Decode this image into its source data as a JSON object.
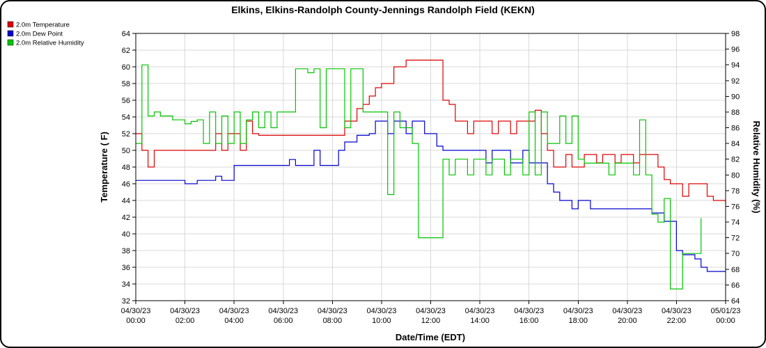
{
  "title": "Elkins, Elkins-Randolph County-Jennings Randolph Field (KEKN)",
  "chart_data": {
    "type": "line",
    "step_lines": true,
    "grid": true,
    "legend_position": "top-left",
    "x_axis_label": "Date/Time (EDT)",
    "left_axis": {
      "label": "Temperature ( F)",
      "min": 32,
      "max": 64,
      "tick_step": 2
    },
    "right_axis": {
      "label": "Relative Humidity (%)",
      "min": 64,
      "max": 98,
      "tick_step": 2
    },
    "x_start_hour": 0,
    "x_step_hours": 0.25,
    "x_end_hour": 24,
    "x_tick_interval_hours": 2,
    "x_tick_labels": [
      {
        "date": "04/30/23",
        "time": "00:00"
      },
      {
        "date": "04/30/23",
        "time": "02:00"
      },
      {
        "date": "04/30/23",
        "time": "04:00"
      },
      {
        "date": "04/30/23",
        "time": "06:00"
      },
      {
        "date": "04/30/23",
        "time": "08:00"
      },
      {
        "date": "04/30/23",
        "time": "10:00"
      },
      {
        "date": "04/30/23",
        "time": "12:00"
      },
      {
        "date": "04/30/23",
        "time": "14:00"
      },
      {
        "date": "04/30/23",
        "time": "16:00"
      },
      {
        "date": "04/30/23",
        "time": "18:00"
      },
      {
        "date": "04/30/23",
        "time": "20:00"
      },
      {
        "date": "04/30/23",
        "time": "22:00"
      },
      {
        "date": "05/01/23",
        "time": "00:00"
      }
    ],
    "series": [
      {
        "name": "2.0m Temperature",
        "color": "#dd0000",
        "axis": "left",
        "values": [
          52,
          50,
          48,
          50,
          50,
          50,
          50,
          50,
          50,
          50,
          50,
          50,
          50,
          52,
          50,
          52,
          52,
          50,
          53.5,
          52,
          51.8,
          51.8,
          51.8,
          51.8,
          51.8,
          51.8,
          51.8,
          51.8,
          51.8,
          51.8,
          51.8,
          51.8,
          51.8,
          51.8,
          53.5,
          53.5,
          55,
          55.5,
          56.5,
          57.5,
          58,
          58,
          60,
          60,
          60.8,
          60.8,
          60.8,
          60.8,
          60.8,
          60.8,
          56,
          55.5,
          53.5,
          53.5,
          52,
          53.5,
          53.5,
          53.5,
          52,
          53.5,
          53.5,
          52,
          53.5,
          53.5,
          53.5,
          54.8,
          52,
          50,
          48,
          48,
          49.5,
          48,
          48,
          49.5,
          49.5,
          48.5,
          49.5,
          49.5,
          48.5,
          49.5,
          49.5,
          48.5,
          49.5,
          49.5,
          49.5,
          48,
          46.5,
          46,
          46,
          44.5,
          46,
          46,
          46,
          44.5,
          44,
          44,
          43.5
        ]
      },
      {
        "name": "2.0m Dew Point",
        "color": "#0000cc",
        "axis": "left",
        "values": [
          46.4,
          46.4,
          46.4,
          46.4,
          46.4,
          46.4,
          46.4,
          46.4,
          46,
          46,
          46.4,
          46.4,
          46.4,
          46.9,
          46.4,
          46.4,
          48.2,
          48.2,
          48.2,
          48.2,
          48.2,
          48.2,
          48.2,
          48.2,
          48.2,
          48.9,
          48.2,
          48.2,
          48.2,
          50,
          48.2,
          48.2,
          48.2,
          50,
          51,
          51,
          51.8,
          51.8,
          52,
          53.5,
          53.5,
          52,
          53.5,
          53.5,
          52,
          53.5,
          53.5,
          52,
          52,
          50.5,
          50,
          50,
          50,
          50,
          50,
          50,
          50,
          48.5,
          50,
          50,
          50,
          48.5,
          48.5,
          50,
          48.5,
          48.5,
          48.5,
          46,
          45,
          44,
          44,
          43,
          44,
          44,
          43,
          43,
          43,
          43,
          43,
          43,
          43,
          43,
          43,
          43,
          42.5,
          42.5,
          41.5,
          41.5,
          38,
          37.5,
          37.5,
          37,
          36,
          35.5,
          35.5,
          35.5,
          35.5
        ]
      },
      {
        "name": "2.0m Relative Humidity",
        "color": "#00c400",
        "axis": "right",
        "values": [
          84,
          94,
          87.5,
          88,
          87.5,
          87.5,
          87,
          87,
          86.5,
          86.8,
          87,
          84,
          88,
          84,
          87.5,
          84,
          88,
          84,
          87,
          88,
          86,
          88,
          86,
          88,
          88,
          88,
          93.5,
          93.5,
          93,
          93.5,
          86,
          93.5,
          93.5,
          93.5,
          86,
          93.5,
          93.5,
          88,
          88,
          88,
          88,
          77.5,
          88,
          86,
          86,
          84,
          72,
          72,
          72,
          72,
          82,
          80,
          82,
          82,
          80,
          82,
          82,
          80,
          82,
          82,
          80,
          82,
          82,
          80,
          88,
          80,
          88,
          84,
          84,
          87.5,
          84,
          87.5,
          82,
          81.5,
          81.5,
          81.5,
          81.5,
          80,
          81.5,
          81.5,
          81.5,
          80,
          87,
          80,
          75,
          74,
          77,
          65.5,
          65.5,
          70,
          70,
          70,
          74.5
        ]
      }
    ]
  }
}
